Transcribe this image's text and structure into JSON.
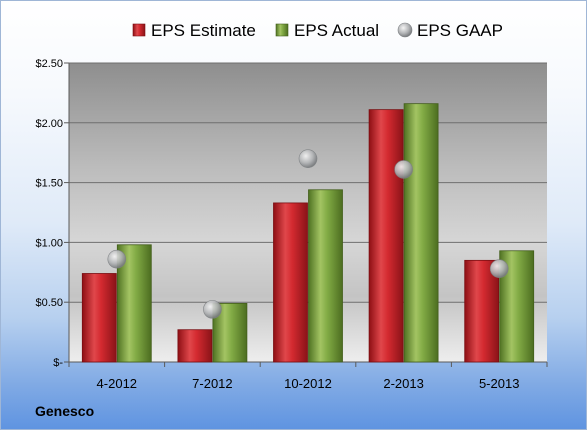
{
  "chart_data": {
    "type": "bar",
    "categories": [
      "4-2012",
      "7-2012",
      "10-2012",
      "2-2013",
      "5-2013"
    ],
    "series": [
      {
        "name": "EPS Estimate",
        "kind": "bar",
        "color": "#c9262c",
        "values": [
          0.74,
          0.27,
          1.33,
          2.11,
          0.85
        ]
      },
      {
        "name": "EPS Actual",
        "kind": "bar",
        "color": "#7aa43c",
        "values": [
          0.98,
          0.49,
          1.44,
          2.16,
          0.93
        ]
      },
      {
        "name": "EPS GAAP",
        "kind": "marker",
        "color": "#a9abad",
        "values": [
          0.86,
          0.44,
          1.7,
          1.61,
          0.78
        ]
      }
    ],
    "ylim": [
      0,
      2.5
    ],
    "yticks": [
      0,
      0.5,
      1.0,
      1.5,
      2.0,
      2.5
    ],
    "ytick_labels": [
      "$-",
      "$0.50",
      "$1.00",
      "$1.50",
      "$2.00",
      "$2.50"
    ],
    "legend_position": "top",
    "grid": true
  },
  "company_label": "Genesco"
}
